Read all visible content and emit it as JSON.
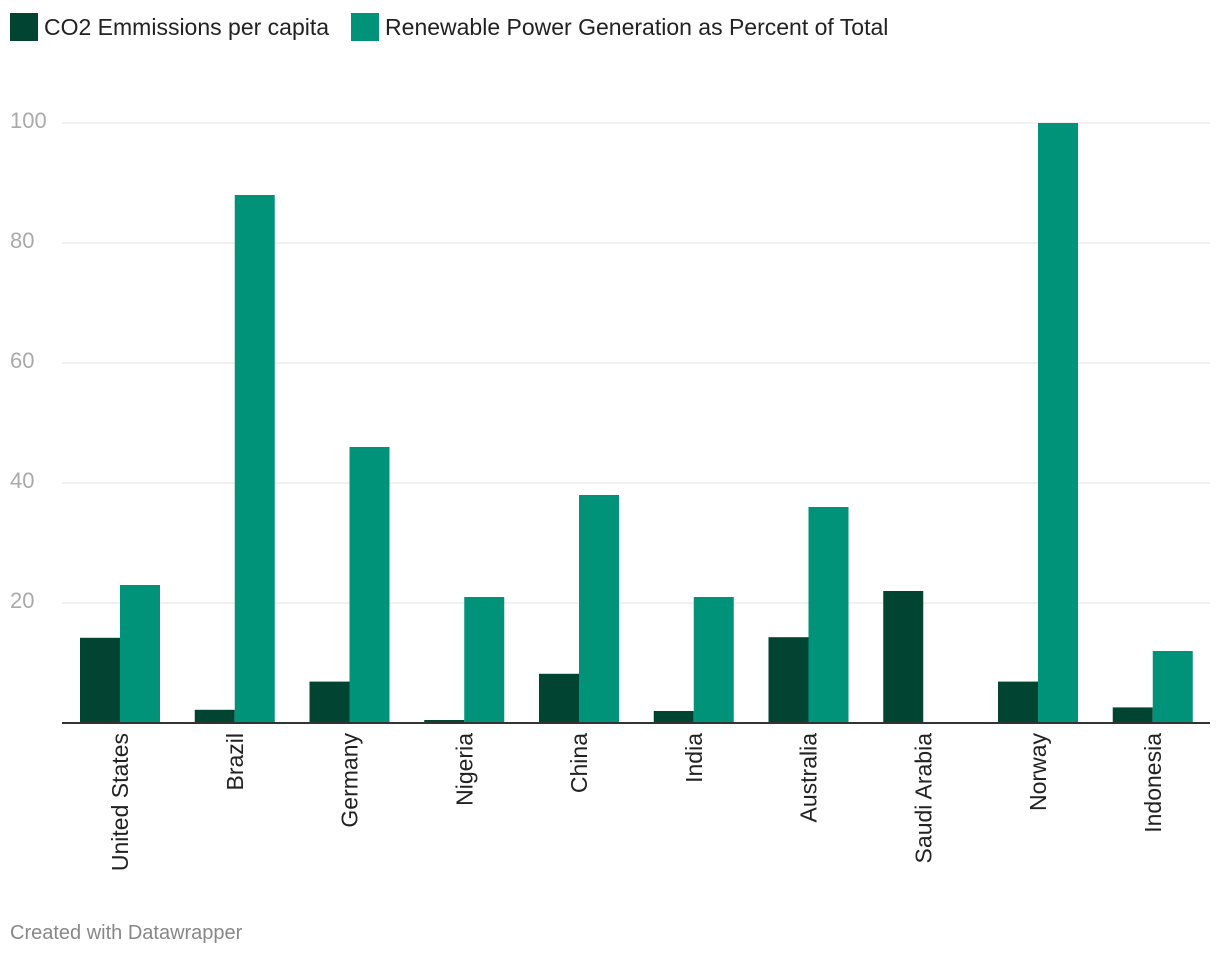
{
  "colors": {
    "series_co2": "#014431",
    "series_renewable": "#009379",
    "grid": "#e3e3e3",
    "baseline": "#333333"
  },
  "footer": {
    "credit": "Created with Datawrapper"
  },
  "chart_data": {
    "type": "bar",
    "title": "",
    "xlabel": "",
    "ylabel": "",
    "ylim": [
      0,
      100
    ],
    "yticks": [
      20,
      40,
      60,
      80,
      100
    ],
    "grid": true,
    "legend_position": "top-left",
    "categories": [
      "United States",
      "Brazil",
      "Germany",
      "Nigeria",
      "China",
      "India",
      "Australia",
      "Saudi Arabia",
      "Norway",
      "Indonesia"
    ],
    "series": [
      {
        "name": "CO2 Emmissions per capita",
        "color": "#014431",
        "values": [
          14.2,
          2.2,
          6.9,
          0.5,
          8.2,
          2.0,
          14.3,
          22.0,
          6.9,
          2.6
        ]
      },
      {
        "name": "Renewable Power Generation as Percent of Total",
        "color": "#009379",
        "values": [
          23,
          88,
          46,
          21,
          38,
          21,
          36,
          0,
          100,
          12
        ]
      }
    ]
  }
}
